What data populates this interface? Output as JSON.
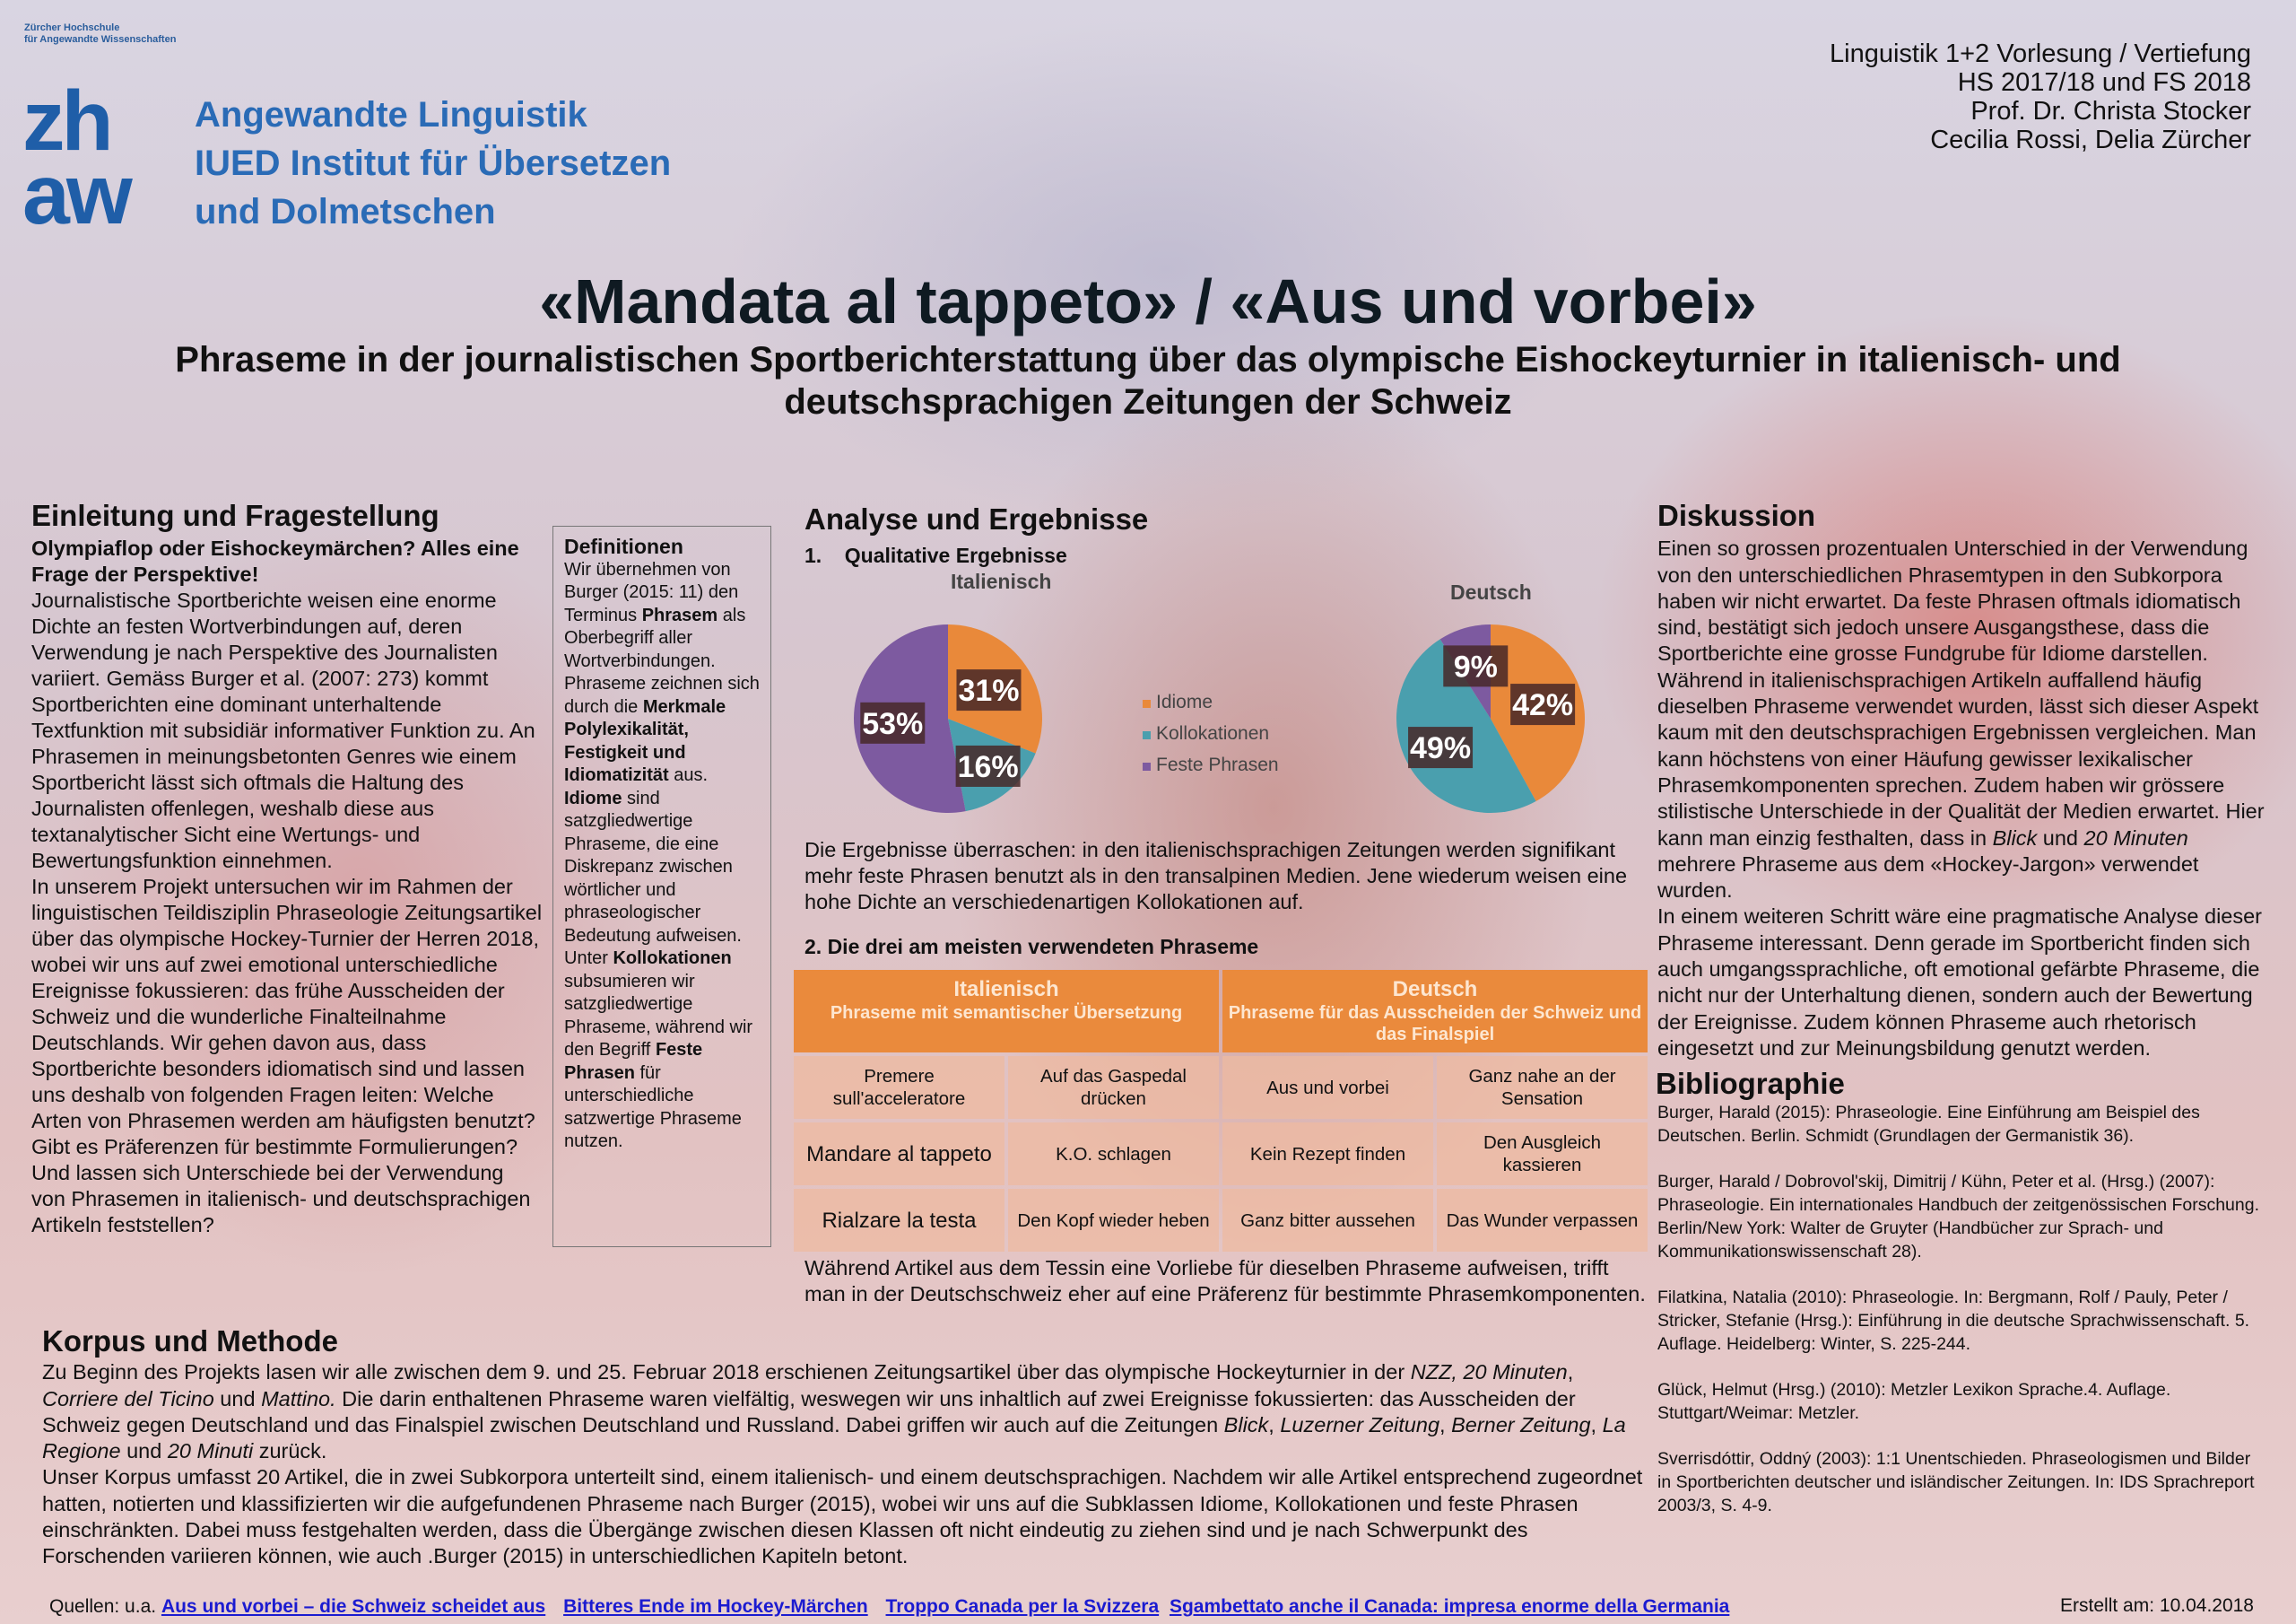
{
  "logo": {
    "institution_small_1": "Zürcher Hochschule",
    "institution_small_2": "für Angewandte Wissenschaften",
    "mark_line1": "zh",
    "mark_line2": "aw",
    "line1": "Angewandte Linguistik",
    "line2": "IUED Institut für Übersetzen",
    "line3": "und Dolmetschen"
  },
  "course": {
    "line1": "Linguistik 1+2  Vorlesung / Vertiefung",
    "line2": "HS 2017/18 und FS 2018",
    "line3": "Prof. Dr. Christa Stocker",
    "line4": "Cecilia Rossi, Delia Zürcher"
  },
  "title": "«Mandata al tappeto» / «Aus und vorbei»",
  "subtitle": "Phraseme in der journalistischen Sportberichterstattung über das olympische Eishockeyturnier in italienisch- und deutschsprachigen Zeitungen der Schweiz",
  "intro": {
    "heading": "Einleitung und Fragestellung",
    "lead": "Olympiaflop oder Eishockeymärchen? Alles eine Frage der Perspektive!",
    "p1": "Journalistische Sportberichte weisen eine enorme Dichte an festen Wortverbindungen auf, deren Verwendung je nach Perspektive des Journalisten variiert. Gemäss Burger et al. (2007: 273) kommt Sportberichten eine dominant unterhaltende Textfunktion mit subsidiär informativer Funktion zu. An Phrasemen in meinungsbetonten Genres wie einem Sportbericht lässt sich oftmals die Haltung des Journalisten offenlegen, weshalb diese aus textanalytischer Sicht eine Wertungs- und Bewertungsfunktion einnehmen.",
    "p2": "In unserem Projekt untersuchen wir im Rahmen der linguistischen Teildisziplin Phraseologie Zeitungsartikel über das olympische Hockey-Turnier der Herren 2018, wobei wir uns auf zwei emotional unterschiedliche Ereignisse fokussieren: das frühe Ausscheiden der Schweiz und die wunderliche Finalteilnahme Deutschlands. Wir gehen davon aus, dass Sportberichte besonders idiomatisch sind und lassen uns deshalb von folgenden Fragen leiten: Welche Arten von Phrasemen werden am häufigsten benutzt? Gibt es Präferenzen für bestimmte Formulierungen? Und lassen sich Unterschiede bei der Verwendung von Phrasemen in italienisch- und deutschsprachigen Artikeln feststellen?"
  },
  "definitions": {
    "heading": "Definitionen",
    "t1": "Wir übernehmen von Burger (2015: 11) den Terminus ",
    "b1": "Phrasem",
    "t2": " als Oberbegriff aller Wortverbindungen. Phraseme zeichnen sich durch die ",
    "b2": "Merkmale Polylexikalität, Festigkeit und Idiomatizität",
    "t3": " aus. ",
    "b3": "Idiome",
    "t4": " sind satzgliedwertige Phraseme, die eine Diskrepanz zwischen wörtlicher und phraseologischer Bedeutung aufweisen. Unter ",
    "b4": "Kollokationen",
    "t5": " subsumieren wir satzgliedwertige Phraseme, während wir den Begriff ",
    "b5": "Feste Phrasen",
    "t6": " für unterschiedliche satzwertige Phraseme nutzen."
  },
  "analysis": {
    "heading": "Analyse und Ergebnisse",
    "qual_num": "1.",
    "qual_label": "Qualitative Ergebnisse",
    "results_text": "Die Ergebnisse überraschen: in den italienischsprachigen Zeitungen werden signifikant mehr feste Phrasen benutzt als in den transalpinen Medien. Jene wiederum weisen eine hohe Dichte an verschiedenartigen Kollokationen auf.",
    "table_heading": "2. Die drei am meisten verwendeten Phraseme",
    "table": {
      "col1_title": "Italienisch",
      "col1_sub": "Phraseme mit semantischer Übersetzung",
      "col2_title": "Deutsch",
      "col2_sub": "Phraseme für das Ausscheiden der Schweiz und das Finalspiel",
      "rows": [
        [
          "Premere sull'acceleratore",
          "Auf das Gaspedal drücken",
          "Aus und vorbei",
          "Ganz nahe an der Sensation"
        ],
        [
          "Mandare al tappeto",
          "K.O. schlagen",
          "Kein Rezept finden",
          "Den Ausgleich kassieren"
        ],
        [
          "Rialzare la testa",
          "Den Kopf wieder heben",
          "Ganz bitter aussehen",
          "Das Wunder verpassen"
        ]
      ]
    },
    "after_text": "Während Artikel aus dem Tessin eine Vorliebe für dieselben Phraseme aufweisen, trifft man in der Deutschschweiz eher auf eine Präferenz für bestimmte Phrasemkomponenten."
  },
  "chart_data": [
    {
      "type": "pie",
      "title": "Italienisch",
      "categories": [
        "Idiome",
        "Kollokationen",
        "Feste Phrasen"
      ],
      "values": [
        31,
        16,
        53
      ],
      "labels": [
        "31%",
        "16%",
        "53%"
      ],
      "colors": [
        "#e9893a",
        "#4a9fae",
        "#7d5aa0"
      ],
      "legend": "center"
    },
    {
      "type": "pie",
      "title": "Deutsch",
      "categories": [
        "Idiome",
        "Kollokationen",
        "Feste Phrasen"
      ],
      "values": [
        42,
        49,
        9
      ],
      "labels": [
        "42%",
        "49%",
        "9%"
      ],
      "colors": [
        "#e9893a",
        "#4a9fae",
        "#7d5aa0"
      ],
      "legend": "center"
    }
  ],
  "legend": [
    "Idiome",
    "Kollokationen",
    "Feste Phrasen"
  ],
  "discussion": {
    "heading": "Diskussion",
    "p1": "Einen so grossen prozentualen Unterschied in der Verwendung von den unterschiedlichen Phrasemtypen in den Subkorpora haben wir nicht erwartet. Da feste Phrasen oftmals idiomatisch sind, bestätigt sich jedoch unsere Ausgangsthese, dass die Sportberichte eine grosse Fundgrube für Idiome darstellen.",
    "p2a": "Während in italienischsprachigen Artikeln auffallend häufig dieselben Phraseme verwendet wurden, lässt sich dieser Aspekt kaum mit den deutschsprachigen Ergebnissen vergleichen. Man kann höchstens von einer Häufung gewisser lexikalischer Phrasemkomponenten sprechen. Zudem haben wir grössere stilistische Unterschiede in der Qualität der Medien erwartet. Hier kann man einzig festhalten, dass in ",
    "p2_em1": "Blick",
    "p2b": " und ",
    "p2_em2": "20 Minuten",
    "p2c": " mehrere Phraseme aus dem «Hockey-Jargon» verwendet wurden.",
    "p3": "In einem weiteren Schritt wäre eine pragmatische Analyse dieser Phraseme interessant. Denn gerade im Sportbericht finden sich auch umgangssprachliche, oft emotional gefärbte Phraseme, die nicht nur der Unterhaltung dienen, sondern auch der Bewertung der Ereignisse. Zudem können Phraseme auch rhetorisch eingesetzt und zur Meinungsbildung genutzt werden."
  },
  "bibliography": {
    "heading": "Bibliographie",
    "entries": [
      "Burger, Harald (2015): Phraseologie. Eine Einführung am Beispiel des Deutschen. Berlin. Schmidt (Grundlagen der Germanistik 36).",
      "Burger, Harald / Dobrovol'skij, Dimitrij / Kühn, Peter et al. (Hrsg.) (2007): Phraseologie. Ein internationales Handbuch der zeitgenössischen Forschung. Berlin/New York: Walter de Gruyter (Handbücher zur Sprach- und Kommunikationswissenschaft 28).",
      "Filatkina, Natalia (2010): Phraseologie. In: Bergmann, Rolf / Pauly, Peter / Stricker, Stefanie (Hrsg.): Einführung in die deutsche Sprachwissenschaft. 5. Auflage. Heidelberg: Winter, S. 225-244.",
      "Glück, Helmut (Hrsg.) (2010): Metzler Lexikon Sprache.4. Auflage. Stuttgart/Weimar: Metzler.",
      "Sverrisdóttir, Oddný (2003): 1:1 Unentschieden. Phraseologismen und Bilder in Sportberichten deutscher und isländischer Zeitungen. In: IDS Sprachreport 2003/3, S. 4-9."
    ]
  },
  "korpus": {
    "heading": "Korpus und Methode",
    "p1_a": "Zu Beginn des Projekts lasen wir alle zwischen dem 9. und 25. Februar 2018 erschienen Zeitungsartikel über das olympische Hockeyturnier in der ",
    "p1_em1": "NZZ, 20 Minuten",
    "p1_b": ", ",
    "p1_em2": "Corriere del Ticino",
    "p1_c": " und ",
    "p1_em3": "Mattino.",
    "p1_d": " Die darin enthaltenen Phraseme waren vielfältig, weswegen wir uns inhaltlich auf zwei Ereignisse fokussierten: das Ausscheiden der Schweiz gegen Deutschland und das Finalspiel zwischen Deutschland und Russland. Dabei griffen wir auch auf die Zeitungen ",
    "p1_em4": "Blick",
    "p1_e": ", ",
    "p1_em5": "Luzerner Zeitung",
    "p1_f": ", ",
    "p1_em6": "Berner Zeitung",
    "p1_g": ", ",
    "p1_em7": "La Regione",
    "p1_h": " und ",
    "p1_em8": "20 Minuti",
    "p1_i": " zurück.",
    "p2": "Unser Korpus umfasst 20 Artikel, die in zwei Subkorpora unterteilt sind, einem italienisch- und einem deutschsprachigen. Nachdem wir alle Artikel entsprechend zugeordnet hatten, notierten und klassifizierten wir die aufgefundenen Phraseme nach Burger (2015), wobei wir uns auf die Subklassen Idiome, Kollokationen und feste Phrasen einschränkten. Dabei muss festgehalten werden, dass die Übergänge zwischen diesen Klassen oft nicht eindeutig zu ziehen sind und je nach Schwerpunkt des Forschenden variieren können, wie auch .Burger (2015) in unterschiedlichen Kapiteln betont."
  },
  "sources": {
    "label": "Quellen: u.a.",
    "links": [
      "Aus und vorbei – die Schweiz scheidet aus",
      "Bitteres Ende im Hockey-Märchen",
      "Troppo Canada per la Svizzera",
      "Sgambettato anche il Canada: impresa enorme della Germania"
    ]
  },
  "created": "Erstellt am: 10.04.2018"
}
